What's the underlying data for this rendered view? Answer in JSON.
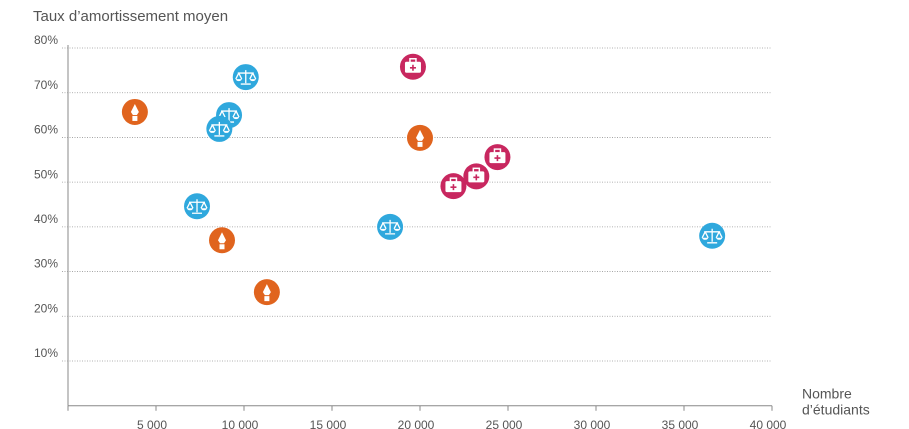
{
  "chart_data": {
    "type": "scatter",
    "title": "Taux d’amortissement moyen",
    "x_label": [
      "Nombre",
      "d’étudiants"
    ],
    "xlim": [
      0,
      40000
    ],
    "xticks": [
      {
        "value": 5000,
        "label": "5 000"
      },
      {
        "value": 10000,
        "label": "10 000"
      },
      {
        "value": 15000,
        "label": "15 000"
      },
      {
        "value": 20000,
        "label": "20 000"
      },
      {
        "value": 25000,
        "label": "25 000"
      },
      {
        "value": 30000,
        "label": "30 000"
      },
      {
        "value": 35000,
        "label": "35 000"
      },
      {
        "value": 40000,
        "label": "40 000"
      }
    ],
    "ylim": [
      0,
      80
    ],
    "yticks": [
      {
        "value": 10,
        "label": "10%"
      },
      {
        "value": 20,
        "label": "20%"
      },
      {
        "value": 30,
        "label": "30%"
      },
      {
        "value": 40,
        "label": "40%"
      },
      {
        "value": 50,
        "label": "50%"
      },
      {
        "value": 60,
        "label": "60%"
      },
      {
        "value": 70,
        "label": "70%"
      },
      {
        "value": 80,
        "label": "80%"
      }
    ],
    "grid": true,
    "series": [
      {
        "color": "#e0641e",
        "marker": "pen",
        "x": [
          3800,
          8750,
          11300,
          20000
        ],
        "values": [
          65.7,
          37,
          25.4,
          59.9
        ]
      },
      {
        "color": "#2fa8dd",
        "marker": "scales",
        "x": [
          10100,
          9150,
          8600,
          7330,
          18300,
          36600
        ],
        "values": [
          73.5,
          65,
          61.9,
          44.6,
          40,
          38
        ]
      },
      {
        "color": "#c8275f",
        "marker": "case",
        "x": [
          19600,
          21900,
          23200,
          24400
        ],
        "values": [
          75.8,
          49.1,
          51.3,
          55.6
        ]
      }
    ]
  }
}
